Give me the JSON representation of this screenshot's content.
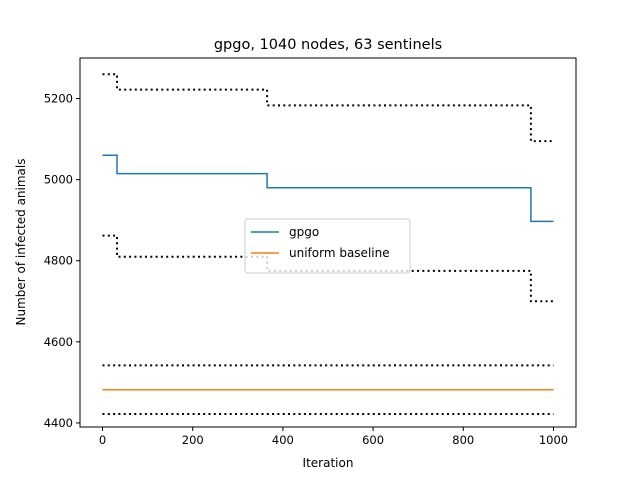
{
  "chart_data": {
    "type": "line",
    "title": "gpgo, 1040 nodes, 63 sentinels",
    "xlabel": "Iteration",
    "ylabel": "Number of infected animals",
    "xlim": [
      -50,
      1050
    ],
    "ylim": [
      4390,
      5300
    ],
    "x_ticks": [
      0,
      200,
      400,
      600,
      800,
      1000
    ],
    "y_ticks": [
      4400,
      4600,
      4800,
      5000,
      5200
    ],
    "grid": false,
    "legend_position": "center",
    "series": [
      {
        "name": "gpgo",
        "color": "#1f77b4",
        "style": "solid",
        "points": [
          [
            0,
            5060
          ],
          [
            32,
            5060
          ],
          [
            32,
            5015
          ],
          [
            365,
            5015
          ],
          [
            365,
            4980
          ],
          [
            950,
            4980
          ],
          [
            950,
            4897
          ],
          [
            1000,
            4897
          ]
        ]
      },
      {
        "name": "uniform baseline",
        "color": "#ff7f0e",
        "style": "solid",
        "points": [
          [
            0,
            4482
          ],
          [
            1000,
            4482
          ]
        ]
      },
      {
        "color": "#000000",
        "style": "dotted",
        "points": [
          [
            0,
            5260
          ],
          [
            32,
            5260
          ],
          [
            32,
            5222
          ],
          [
            365,
            5222
          ],
          [
            365,
            5183
          ],
          [
            950,
            5183
          ],
          [
            950,
            5095
          ],
          [
            1000,
            5095
          ]
        ]
      },
      {
        "color": "#000000",
        "style": "dotted",
        "points": [
          [
            0,
            4862
          ],
          [
            32,
            4862
          ],
          [
            32,
            4810
          ],
          [
            365,
            4810
          ],
          [
            365,
            4775
          ],
          [
            950,
            4775
          ],
          [
            950,
            4700
          ],
          [
            1000,
            4700
          ]
        ]
      },
      {
        "color": "#000000",
        "style": "dotted",
        "points": [
          [
            0,
            4542
          ],
          [
            1000,
            4542
          ]
        ]
      },
      {
        "color": "#000000",
        "style": "dotted",
        "points": [
          [
            0,
            4422
          ],
          [
            1000,
            4422
          ]
        ]
      }
    ]
  }
}
